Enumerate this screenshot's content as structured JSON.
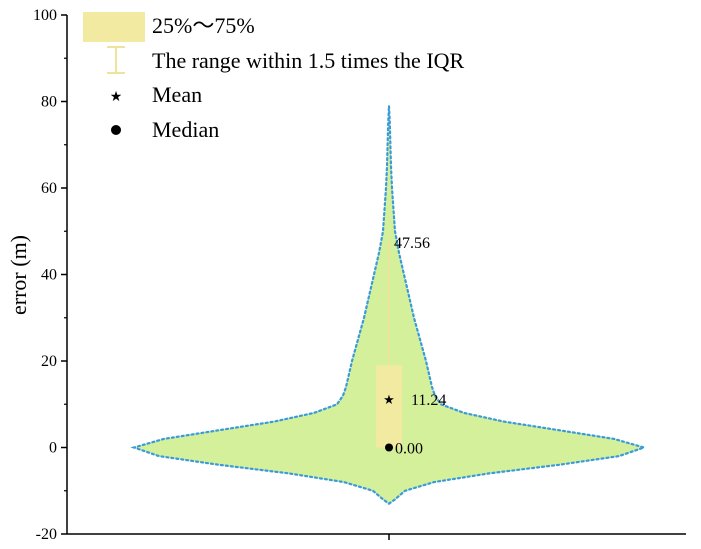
{
  "chart_data": {
    "type": "violin",
    "title": "",
    "xlabel": "",
    "ylabel": "error (m)",
    "ylim": [
      -20,
      100
    ],
    "yticks": [
      -20,
      0,
      20,
      40,
      60,
      80,
      100
    ],
    "grid": false,
    "legend_position": "top-left",
    "distribution": {
      "min": -13,
      "max": 79,
      "q1": 0,
      "q3": 19,
      "whisker_low": 0,
      "whisker_high": 47.56,
      "mean": 11.24,
      "median": 0.0
    },
    "annotations": {
      "whisker_high": "47.56",
      "mean": "11.24",
      "median": "0.00"
    },
    "legend": {
      "iqr_box": "25%～75%",
      "whisker": "The range within 1.5 times the IQR",
      "mean": "Mean",
      "median": "Median"
    },
    "colors": {
      "violin_fill": "#d4f09a",
      "violin_outline": "#3a9bd9",
      "box_fill": "#f2eaa0",
      "whisker": "#ede39a"
    }
  }
}
